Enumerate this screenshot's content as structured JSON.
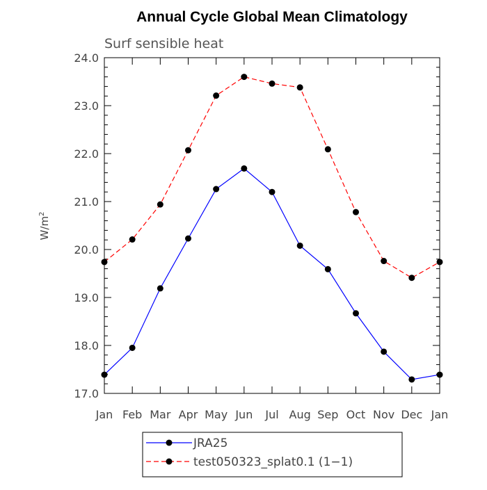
{
  "chart_data": {
    "type": "line",
    "title": "Annual Cycle Global Mean Climatology",
    "subtitle": "Surf sensible heat",
    "ylabel": "W/m",
    "ylabel_superscript": "2",
    "xlabel": "",
    "categories": [
      "Jan",
      "Feb",
      "Mar",
      "Apr",
      "May",
      "Jun",
      "Jul",
      "Aug",
      "Sep",
      "Oct",
      "Nov",
      "Dec",
      "Jan"
    ],
    "ylim": [
      17.0,
      24.0
    ],
    "yticks": [
      "17.0",
      "18.0",
      "19.0",
      "20.0",
      "21.0",
      "22.0",
      "23.0",
      "24.0"
    ],
    "grid": false,
    "legend_position": "bottom",
    "series": [
      {
        "name": "JRA25",
        "color": "#0000ff",
        "style": "solid",
        "marker": "filled-circle",
        "values": [
          17.39,
          17.95,
          19.19,
          20.23,
          21.26,
          21.69,
          21.2,
          20.08,
          19.59,
          18.67,
          17.87,
          17.29,
          17.39
        ]
      },
      {
        "name": "test050323_splat0.1 (1−1)",
        "color": "#ff0000",
        "style": "dashed",
        "marker": "filled-circle",
        "values": [
          19.74,
          20.21,
          20.94,
          22.07,
          23.21,
          23.6,
          23.46,
          23.38,
          22.09,
          20.78,
          19.76,
          19.41,
          19.74
        ]
      }
    ]
  }
}
